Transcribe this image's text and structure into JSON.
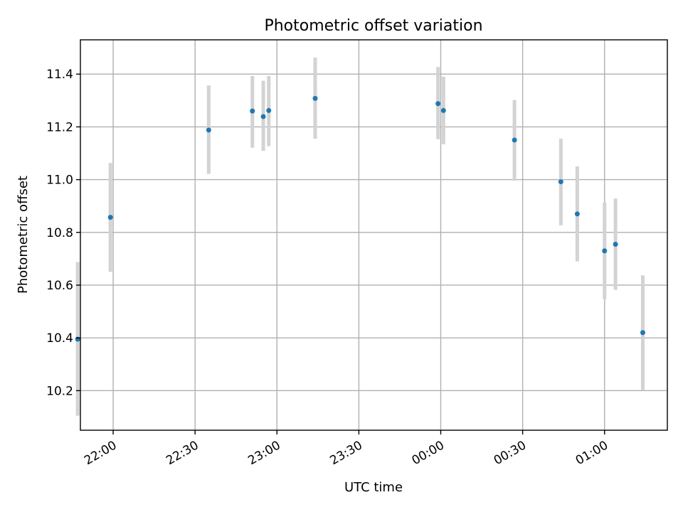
{
  "chart_data": {
    "type": "scatter",
    "title": "Photometric offset variation",
    "xlabel": "UTC time",
    "ylabel": "Photometric offset",
    "x_axis_type": "time",
    "xlim": [
      "21:48",
      "01:23"
    ],
    "ylim": [
      10.05,
      11.53
    ],
    "xticks": [
      "22:00",
      "22:30",
      "23:00",
      "23:30",
      "00:00",
      "00:30",
      "01:00"
    ],
    "yticks": [
      "10.2",
      "10.4",
      "10.6",
      "10.8",
      "11.0",
      "11.2",
      "11.4"
    ],
    "grid": true,
    "marker_color": "#1f77b4",
    "errorbar_color": "#d3d3d3",
    "points": [
      {
        "x": "21:47",
        "y": 10.395,
        "ylo": 10.105,
        "yhi": 10.688
      },
      {
        "x": "21:59",
        "y": 10.857,
        "ylo": 10.65,
        "yhi": 11.063
      },
      {
        "x": "22:35",
        "y": 11.188,
        "ylo": 11.022,
        "yhi": 11.357
      },
      {
        "x": "22:51",
        "y": 11.26,
        "ylo": 11.121,
        "yhi": 11.393
      },
      {
        "x": "22:55",
        "y": 11.239,
        "ylo": 11.109,
        "yhi": 11.375
      },
      {
        "x": "22:57",
        "y": 11.262,
        "ylo": 11.127,
        "yhi": 11.393
      },
      {
        "x": "23:14",
        "y": 11.308,
        "ylo": 11.155,
        "yhi": 11.463
      },
      {
        "x": "23:59",
        "y": 11.288,
        "ylo": 11.153,
        "yhi": 11.427
      },
      {
        "x": "00:01",
        "y": 11.262,
        "ylo": 11.134,
        "yhi": 11.39
      },
      {
        "x": "00:27",
        "y": 11.15,
        "ylo": 10.996,
        "yhi": 11.302
      },
      {
        "x": "00:44",
        "y": 10.992,
        "ylo": 10.827,
        "yhi": 11.155
      },
      {
        "x": "00:50",
        "y": 10.87,
        "ylo": 10.69,
        "yhi": 11.05
      },
      {
        "x": "01:00",
        "y": 10.73,
        "ylo": 10.547,
        "yhi": 10.913
      },
      {
        "x": "01:04",
        "y": 10.755,
        "ylo": 10.582,
        "yhi": 10.928
      },
      {
        "x": "01:14",
        "y": 10.42,
        "ylo": 10.203,
        "yhi": 10.637
      }
    ]
  }
}
